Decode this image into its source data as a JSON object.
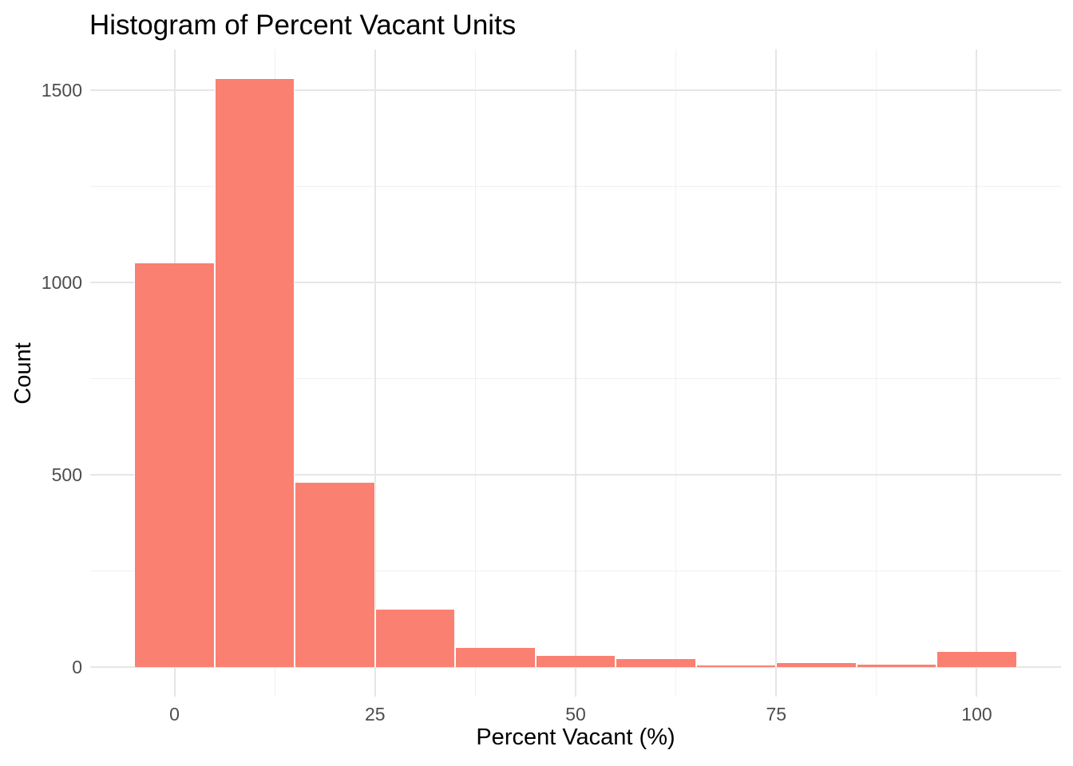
{
  "figure": {
    "title": "Histogram of Percent Vacant Units",
    "x_axis_label": "Percent Vacant (%)",
    "y_axis_label": "Count"
  },
  "chart_data": {
    "type": "bar",
    "subtype": "histogram",
    "title": "Histogram of Percent Vacant Units",
    "xlabel": "Percent Vacant (%)",
    "ylabel": "Count",
    "bin_width": 10,
    "bin_edges": [
      -5,
      5,
      15,
      25,
      35,
      45,
      55,
      65,
      75,
      85,
      95,
      105
    ],
    "bin_centers": [
      0,
      10,
      20,
      30,
      40,
      50,
      60,
      70,
      80,
      90,
      100
    ],
    "counts": [
      1050,
      1530,
      480,
      150,
      50,
      30,
      20,
      5,
      10,
      7,
      40
    ],
    "x_ticks": [
      0,
      25,
      75,
      50,
      100
    ],
    "x_tick_positions": [
      0,
      25,
      50,
      75,
      100
    ],
    "x_tick_labels": [
      "0",
      "25",
      "50",
      "75",
      "100"
    ],
    "x_minor_gridlines": [
      12.5,
      37.5,
      62.5,
      87.5
    ],
    "y_tick_positions": [
      0,
      500,
      1000,
      1500
    ],
    "y_tick_labels": [
      "0",
      "500",
      "1000",
      "1500"
    ],
    "y_minor_gridlines": [
      250,
      750,
      1250
    ],
    "xlim": [
      -10.5,
      110.5
    ],
    "ylim": [
      -76.5,
      1606.5
    ],
    "grid": true,
    "legend": "none",
    "colors": {
      "bar_fill": "#FA8072",
      "bar_stroke": "#FFFFFF",
      "grid_major": "#E6E6E6",
      "grid_minor": "#F0F0F0",
      "tick_label": "#4D4D4D",
      "title": "#000000",
      "axis_title": "#000000",
      "background": "#FFFFFF"
    }
  }
}
